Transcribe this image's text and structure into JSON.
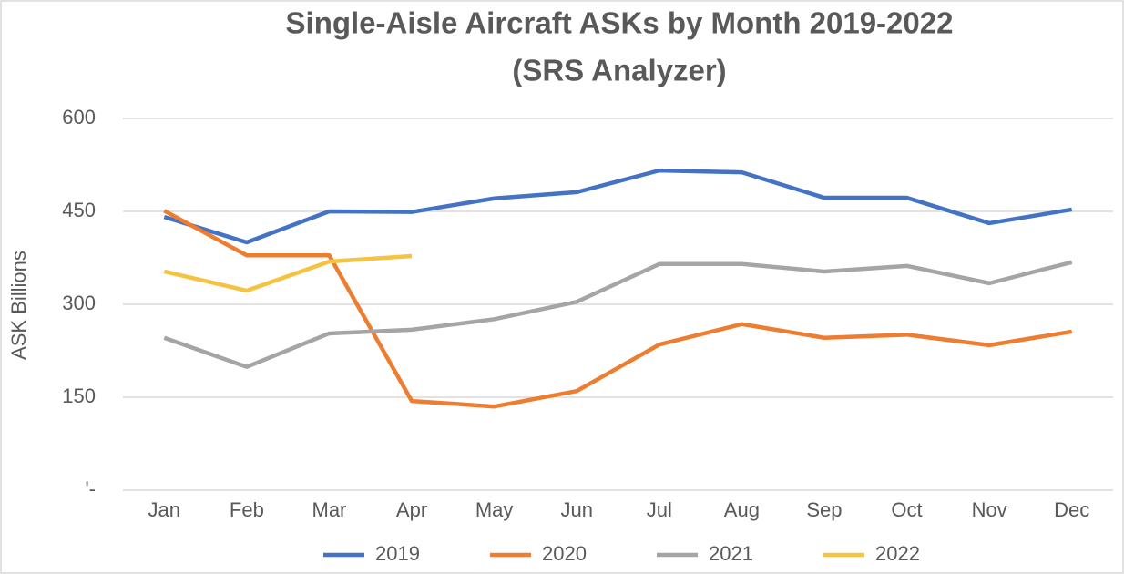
{
  "chart_data": {
    "type": "line",
    "title": "Single-Aisle Aircraft ASKs by Month 2019-2022",
    "subtitle": "(SRS Analyzer)",
    "y_label": "ASK Billions",
    "categories": [
      "Jan",
      "Feb",
      "Mar",
      "Apr",
      "May",
      "Jun",
      "Jul",
      "Aug",
      "Sep",
      "Oct",
      "Nov",
      "Dec"
    ],
    "series": [
      {
        "name": "2019",
        "color": "#4472c4",
        "values": [
          441,
          400,
          450,
          449,
          471,
          481,
          516,
          513,
          472,
          472,
          431,
          453
        ]
      },
      {
        "name": "2020",
        "color": "#ed7d31",
        "values": [
          451,
          379,
          379,
          144,
          135,
          160,
          235,
          268,
          246,
          251,
          234,
          256
        ]
      },
      {
        "name": "2021",
        "color": "#a5a5a5",
        "values": [
          246,
          199,
          253,
          259,
          276,
          304,
          365,
          365,
          353,
          362,
          334,
          368
        ]
      },
      {
        "name": "2022",
        "color": "#f5c242",
        "values": [
          353,
          322,
          369,
          378,
          null,
          null,
          null,
          null,
          null,
          null,
          null,
          null
        ]
      }
    ],
    "ylim": [
      0,
      600
    ],
    "yticks": [
      {
        "value": 0,
        "label": "'-"
      },
      150,
      300,
      450,
      600
    ],
    "grid": true,
    "legend": "bottom"
  }
}
